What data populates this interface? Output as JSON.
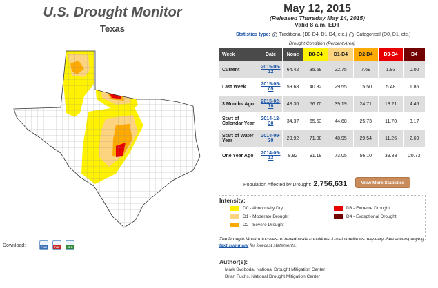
{
  "header": {
    "title": "U.S. Drought Monitor",
    "region": "Texas",
    "date": "May 12, 2015",
    "released": "(Released Thursday May 14, 2015)",
    "valid": "Valid 8 a.m. EDT"
  },
  "download": {
    "label": "Download:",
    "icons": [
      "PNG",
      "PDF",
      "JPG"
    ]
  },
  "stats": {
    "type_label": "Statistics type:",
    "option_traditional": "Traditional (D0-D4, D1-D4, etc.)",
    "option_categorical": "Categorical (D0, D1, etc.)",
    "selected": "traditional",
    "condition_label": "Drought Condition (Percent Area)"
  },
  "table": {
    "headers": [
      "Week",
      "Date",
      "None",
      "D0-D4",
      "D1-D4",
      "D2-D4",
      "D3-D4",
      "D4"
    ],
    "rows": [
      {
        "week": "Current",
        "date": "2015-05-12",
        "none": "64.42",
        "d0": "35.58",
        "d1": "22.75",
        "d2": "7.69",
        "d3": "1.93",
        "d4": "0.00"
      },
      {
        "week": "Last Week",
        "date": "2015-05-05",
        "none": "59.68",
        "d0": "40.32",
        "d1": "29.55",
        "d2": "15.50",
        "d3": "5.48",
        "d4": "1.86"
      },
      {
        "week": "3 Months Ago",
        "date": "2015-02-10",
        "none": "43.30",
        "d0": "56.70",
        "d1": "39.19",
        "d2": "24.71",
        "d3": "13.21",
        "d4": "4.46"
      },
      {
        "week": "Start of Calendar Year",
        "date": "2014-12-30",
        "none": "34.37",
        "d0": "65.63",
        "d1": "44.68",
        "d2": "25.73",
        "d3": "11.70",
        "d4": "3.17"
      },
      {
        "week": "Start of Water Year",
        "date": "2014-09-30",
        "none": "28.92",
        "d0": "71.08",
        "d1": "48.95",
        "d2": "29.54",
        "d3": "11.26",
        "d4": "2.69"
      },
      {
        "week": "One Year Ago",
        "date": "2014-05-13",
        "none": "8.82",
        "d0": "91.18",
        "d1": "73.05",
        "d2": "56.10",
        "d3": "39.88",
        "d4": "20.73"
      }
    ]
  },
  "population": {
    "label": "Population Affected by Drought:",
    "value": "2,756,631",
    "button": "View More Statistics"
  },
  "intensity": {
    "title": "Intensity:",
    "items": [
      {
        "label": "D0 - Abnormally Dry",
        "color": "#FFFF00"
      },
      {
        "label": "D1 - Moderate Drought",
        "color": "#FCD37F"
      },
      {
        "label": "D2 - Severe Drought",
        "color": "#FFAA00"
      },
      {
        "label": "D3 - Extreme Drought",
        "color": "#E60000"
      },
      {
        "label": "D4 - Exceptional Drought",
        "color": "#730000"
      }
    ]
  },
  "note": {
    "text1": "The Drought Monitor focuses on broad-scale conditions. Local conditions may vary. See accompanying",
    "link": "text summary",
    "text2": "for forecast statements."
  },
  "authors": {
    "title": "Author(s):",
    "list": [
      "Mark Svoboda, National Drought Mitigation Center",
      "Brian Fuchs, National Drought Mitigation Center"
    ]
  }
}
